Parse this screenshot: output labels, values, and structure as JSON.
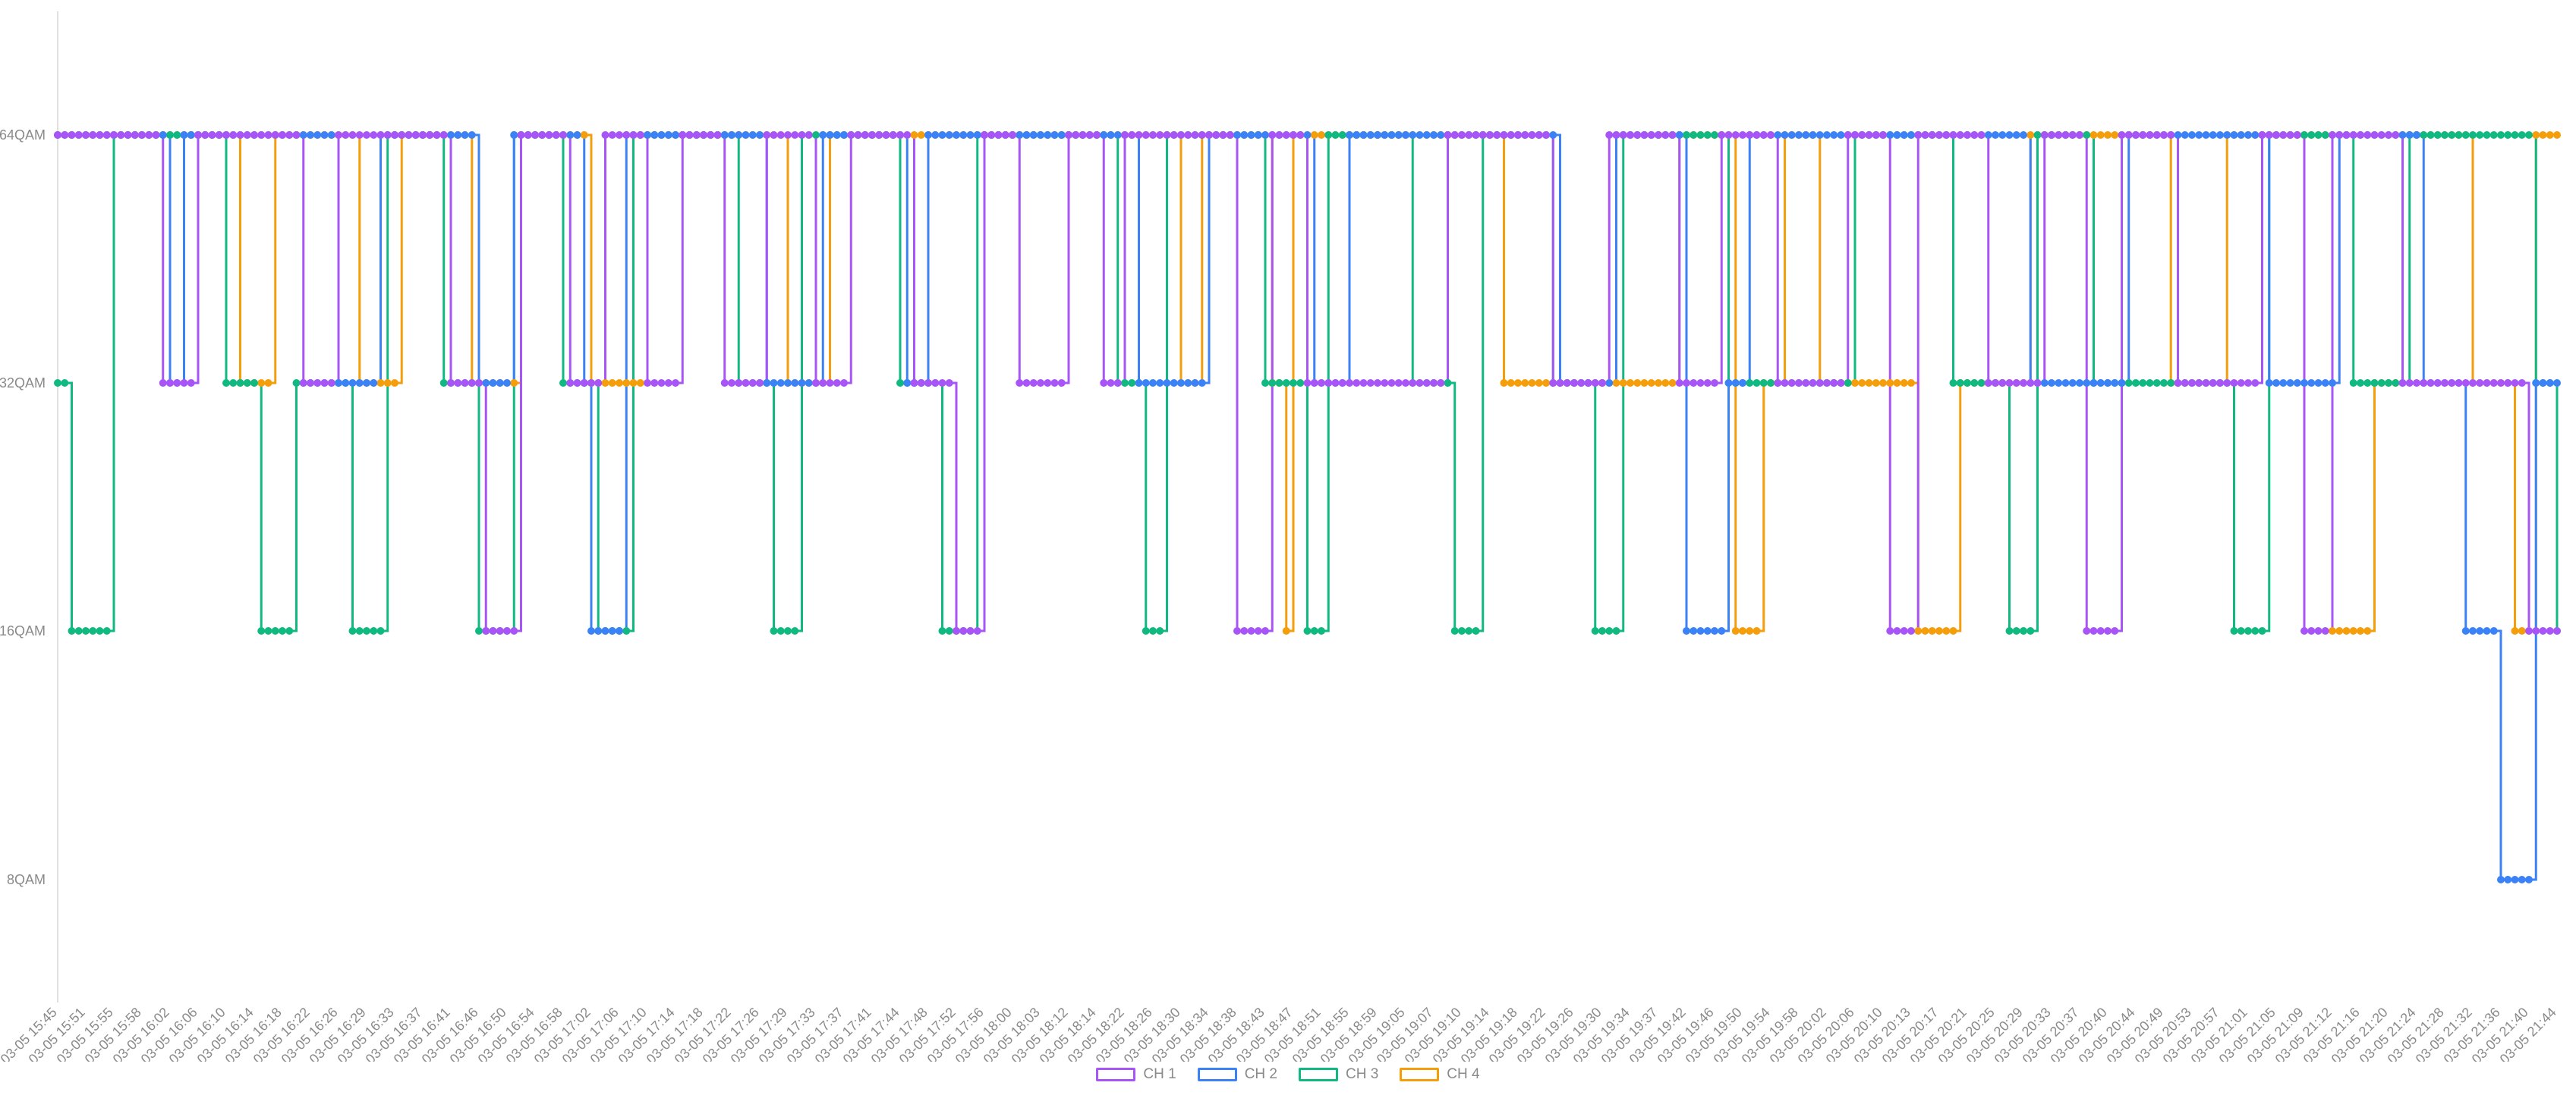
{
  "chart_data": {
    "type": "line",
    "step": "end",
    "y_categories": [
      "8QAM",
      "16QAM",
      "32QAM",
      "64QAM"
    ],
    "x_tick_labels": [
      "03-05 15:45",
      "03-05 15:51",
      "03-05 15:55",
      "03-05 15:58",
      "03-05 16:02",
      "03-05 16:06",
      "03-05 16:10",
      "03-05 16:14",
      "03-05 16:18",
      "03-05 16:22",
      "03-05 16:26",
      "03-05 16:29",
      "03-05 16:33",
      "03-05 16:37",
      "03-05 16:41",
      "03-05 16:46",
      "03-05 16:50",
      "03-05 16:54",
      "03-05 16:58",
      "03-05 17:02",
      "03-05 17:06",
      "03-05 17:10",
      "03-05 17:14",
      "03-05 17:18",
      "03-05 17:22",
      "03-05 17:26",
      "03-05 17:29",
      "03-05 17:33",
      "03-05 17:37",
      "03-05 17:41",
      "03-05 17:44",
      "03-05 17:48",
      "03-05 17:52",
      "03-05 17:56",
      "03-05 18:00",
      "03-05 18:03",
      "03-05 18:12",
      "03-05 18:14",
      "03-05 18:22",
      "03-05 18:26",
      "03-05 18:30",
      "03-05 18:34",
      "03-05 18:38",
      "03-05 18:43",
      "03-05 18:47",
      "03-05 18:51",
      "03-05 18:55",
      "03-05 18:59",
      "03-05 19:05",
      "03-05 19:07",
      "03-05 19:10",
      "03-05 19:14",
      "03-05 19:18",
      "03-05 19:22",
      "03-05 19:26",
      "03-05 19:30",
      "03-05 19:34",
      "03-05 19:37",
      "03-05 19:42",
      "03-05 19:46",
      "03-05 19:50",
      "03-05 19:54",
      "03-05 19:58",
      "03-05 20:02",
      "03-05 20:06",
      "03-05 20:10",
      "03-05 20:13",
      "03-05 20:17",
      "03-05 20:21",
      "03-05 20:25",
      "03-05 20:29",
      "03-05 20:33",
      "03-05 20:37",
      "03-05 20:40",
      "03-05 20:44",
      "03-05 20:49",
      "03-05 20:53",
      "03-05 20:57",
      "03-05 21:01",
      "03-05 21:05",
      "03-05 21:09",
      "03-05 21:12",
      "03-05 21:16",
      "03-05 21:20",
      "03-05 21:24",
      "03-05 21:28",
      "03-05 21:32",
      "03-05 21:36",
      "03-05 21:40",
      "03-05 21:44"
    ],
    "points_per_tick": 4,
    "legend_position": "bottom",
    "grid": false,
    "series_encoding": "runs of [level, number of consecutive samples]",
    "series": [
      {
        "name": "CH 1",
        "color": "#a855f7",
        "runs": [
          [
            "64QAM",
            15
          ],
          [
            "32QAM",
            5
          ],
          [
            "64QAM",
            15
          ],
          [
            "32QAM",
            5
          ],
          [
            "64QAM",
            16
          ],
          [
            "32QAM",
            5
          ],
          [
            "16QAM",
            5
          ],
          [
            "64QAM",
            7
          ],
          [
            "32QAM",
            5
          ],
          [
            "64QAM",
            6
          ],
          [
            "32QAM",
            5
          ],
          [
            "64QAM",
            6
          ],
          [
            "32QAM",
            6
          ],
          [
            "64QAM",
            7
          ],
          [
            "32QAM",
            5
          ],
          [
            "64QAM",
            9
          ],
          [
            "32QAM",
            6
          ],
          [
            "16QAM",
            4
          ],
          [
            "64QAM",
            5
          ],
          [
            "32QAM",
            7
          ],
          [
            "64QAM",
            5
          ],
          [
            "32QAM",
            3
          ],
          [
            "64QAM",
            16
          ],
          [
            "16QAM",
            5
          ],
          [
            "64QAM",
            5
          ],
          [
            "32QAM",
            20
          ],
          [
            "64QAM",
            15
          ],
          [
            "32QAM",
            8
          ],
          [
            "64QAM",
            10
          ],
          [
            "32QAM",
            6
          ],
          [
            "64QAM",
            8
          ],
          [
            "32QAM",
            10
          ],
          [
            "64QAM",
            6
          ],
          [
            "16QAM",
            4
          ],
          [
            "64QAM",
            10
          ],
          [
            "32QAM",
            8
          ],
          [
            "64QAM",
            6
          ],
          [
            "16QAM",
            5
          ],
          [
            "64QAM",
            8
          ],
          [
            "32QAM",
            12
          ],
          [
            "64QAM",
            6
          ],
          [
            "16QAM",
            4
          ],
          [
            "64QAM",
            10
          ],
          [
            "32QAM",
            18
          ],
          [
            "16QAM",
            5
          ]
        ]
      },
      {
        "name": "CH 2",
        "color": "#3b82f6",
        "runs": [
          [
            "64QAM",
            16
          ],
          [
            "32QAM",
            2
          ],
          [
            "64QAM",
            22
          ],
          [
            "32QAM",
            6
          ],
          [
            "64QAM",
            14
          ],
          [
            "32QAM",
            5
          ],
          [
            "64QAM",
            10
          ],
          [
            "32QAM",
            1
          ],
          [
            "16QAM",
            5
          ],
          [
            "64QAM",
            20
          ],
          [
            "32QAM",
            8
          ],
          [
            "64QAM",
            12
          ],
          [
            "32QAM",
            3
          ],
          [
            "64QAM",
            30
          ],
          [
            "32QAM",
            10
          ],
          [
            "64QAM",
            15
          ],
          [
            "32QAM",
            5
          ],
          [
            "64QAM",
            30
          ],
          [
            "32QAM",
            8
          ],
          [
            "64QAM",
            10
          ],
          [
            "16QAM",
            6
          ],
          [
            "32QAM",
            3
          ],
          [
            "64QAM",
            40
          ],
          [
            "32QAM",
            14
          ],
          [
            "64QAM",
            20
          ],
          [
            "32QAM",
            10
          ],
          [
            "64QAM",
            12
          ],
          [
            "32QAM",
            6
          ],
          [
            "16QAM",
            5
          ],
          [
            "8QAM",
            5
          ],
          [
            "32QAM",
            4
          ]
        ]
      },
      {
        "name": "CH 3",
        "color": "#10b981",
        "runs": [
          [
            "32QAM",
            2
          ],
          [
            "16QAM",
            6
          ],
          [
            "64QAM",
            16
          ],
          [
            "32QAM",
            5
          ],
          [
            "16QAM",
            5
          ],
          [
            "32QAM",
            8
          ],
          [
            "16QAM",
            5
          ],
          [
            "64QAM",
            8
          ],
          [
            "32QAM",
            5
          ],
          [
            "16QAM",
            5
          ],
          [
            "64QAM",
            7
          ],
          [
            "32QAM",
            5
          ],
          [
            "16QAM",
            5
          ],
          [
            "64QAM",
            15
          ],
          [
            "32QAM",
            5
          ],
          [
            "16QAM",
            4
          ],
          [
            "64QAM",
            14
          ],
          [
            "32QAM",
            6
          ],
          [
            "16QAM",
            5
          ],
          [
            "64QAM",
            20
          ],
          [
            "32QAM",
            4
          ],
          [
            "16QAM",
            3
          ],
          [
            "64QAM",
            14
          ],
          [
            "32QAM",
            6
          ],
          [
            "16QAM",
            3
          ],
          [
            "64QAM",
            12
          ],
          [
            "32QAM",
            6
          ],
          [
            "16QAM",
            4
          ],
          [
            "64QAM",
            10
          ],
          [
            "32QAM",
            6
          ],
          [
            "16QAM",
            4
          ],
          [
            "64QAM",
            15
          ],
          [
            "32QAM",
            18
          ],
          [
            "64QAM",
            14
          ],
          [
            "32QAM",
            8
          ],
          [
            "16QAM",
            4
          ],
          [
            "64QAM",
            8
          ],
          [
            "32QAM",
            20
          ],
          [
            "16QAM",
            5
          ],
          [
            "64QAM",
            12
          ],
          [
            "32QAM",
            8
          ],
          [
            "64QAM",
            18
          ],
          [
            "32QAM",
            3
          ],
          [
            "16QAM",
            1
          ]
        ]
      },
      {
        "name": "CH 4",
        "color": "#f59e0b",
        "runs": [
          [
            "64QAM",
            26
          ],
          [
            "32QAM",
            5
          ],
          [
            "64QAM",
            12
          ],
          [
            "32QAM",
            6
          ],
          [
            "64QAM",
            10
          ],
          [
            "32QAM",
            7
          ],
          [
            "64QAM",
            10
          ],
          [
            "32QAM",
            8
          ],
          [
            "64QAM",
            20
          ],
          [
            "32QAM",
            6
          ],
          [
            "64QAM",
            50
          ],
          [
            "32QAM",
            3
          ],
          [
            "64QAM",
            10
          ],
          [
            "32QAM",
            2
          ],
          [
            "16QAM",
            1
          ],
          [
            "64QAM",
            30
          ],
          [
            "32QAM",
            25
          ],
          [
            "64QAM",
            8
          ],
          [
            "16QAM",
            4
          ],
          [
            "32QAM",
            3
          ],
          [
            "64QAM",
            5
          ],
          [
            "32QAM",
            14
          ],
          [
            "16QAM",
            6
          ],
          [
            "32QAM",
            10
          ],
          [
            "64QAM",
            20
          ],
          [
            "32QAM",
            8
          ],
          [
            "64QAM",
            15
          ],
          [
            "16QAM",
            6
          ],
          [
            "32QAM",
            4
          ],
          [
            "64QAM",
            10
          ],
          [
            "32QAM",
            6
          ],
          [
            "16QAM",
            3
          ],
          [
            "64QAM",
            4
          ]
        ]
      }
    ]
  }
}
